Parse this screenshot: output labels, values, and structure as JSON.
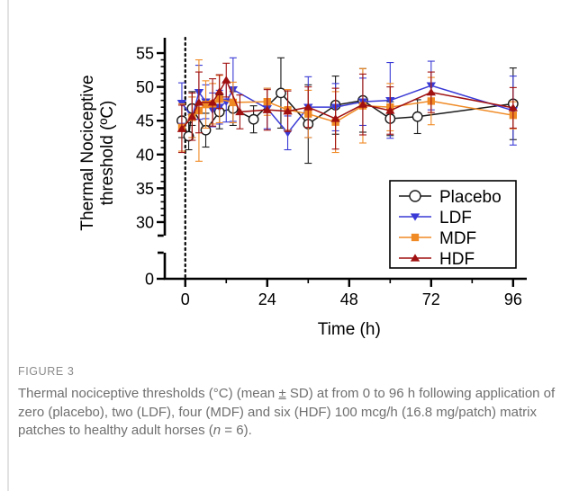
{
  "chart_data": {
    "type": "line",
    "xlabel": "Time (h)",
    "ylabel_lines": [
      "Thermal Nociceptive",
      "threshold (ºC)"
    ],
    "xlim": [
      -6,
      100
    ],
    "xticks": [
      0,
      24,
      48,
      72,
      96
    ],
    "ylim": [
      28,
      57
    ],
    "ylim_lower_segment": [
      0,
      3
    ],
    "yticks": [
      30,
      35,
      40,
      45,
      50,
      55
    ],
    "ytick_labels": [
      "30",
      "35",
      "40",
      "45",
      "50",
      "55"
    ],
    "ytick_lower": [
      0
    ],
    "ytick_lower_labels": [
      "0"
    ],
    "legend_position": "bottom-right",
    "series": [
      {
        "name": "Placebo",
        "color": "#1a1a1a",
        "marker": "circle",
        "x": [
          -1,
          1,
          2,
          6,
          10,
          14,
          20,
          28,
          36,
          44,
          52,
          60,
          68,
          96
        ],
        "y": [
          45.0,
          42.7,
          46.8,
          43.6,
          46.3,
          46.8,
          45.2,
          49.1,
          44.5,
          47.3,
          48.0,
          45.3,
          45.6,
          47.5
        ],
        "err": [
          2.5,
          2.0,
          2.5,
          2.5,
          2.5,
          2.5,
          2.0,
          5.2,
          5.8,
          4.3,
          4.7,
          2.5,
          2.5,
          5.3
        ]
      },
      {
        "name": "LDF",
        "color": "#3a3ad6",
        "marker": "triangle-down",
        "x": [
          -1,
          2,
          4,
          6,
          8,
          10,
          12,
          14,
          24,
          30,
          36,
          44,
          52,
          60,
          72,
          96
        ],
        "y": [
          47.6,
          45.5,
          49.2,
          47.8,
          46.6,
          47.0,
          47.8,
          49.6,
          46.8,
          43.2,
          47.0,
          47.0,
          47.8,
          48.0,
          50.2,
          46.5
        ],
        "err": [
          3.0,
          3.0,
          4.0,
          2.5,
          2.5,
          2.5,
          3.0,
          4.7,
          3.0,
          2.5,
          4.5,
          3.5,
          3.5,
          5.6,
          3.6,
          5.1
        ]
      },
      {
        "name": "MDF",
        "color": "#f08a24",
        "marker": "square",
        "x": [
          -1,
          2,
          4,
          6,
          8,
          10,
          14,
          24,
          30,
          36,
          44,
          52,
          60,
          72,
          96
        ],
        "y": [
          44.0,
          45.5,
          46.5,
          47.4,
          47.5,
          48.2,
          47.7,
          47.8,
          46.6,
          46.0,
          44.8,
          47.2,
          47.0,
          47.9,
          45.8
        ],
        "err": [
          3.5,
          3.0,
          7.5,
          3.5,
          3.0,
          3.5,
          3.0,
          2.0,
          3.0,
          3.5,
          4.5,
          5.5,
          3.5,
          3.5,
          2.0
        ]
      },
      {
        "name": "HDF",
        "color": "#a01010",
        "marker": "triangle-up",
        "x": [
          -1,
          2,
          4,
          8,
          10,
          12,
          16,
          24,
          30,
          36,
          44,
          52,
          60,
          72,
          96
        ],
        "y": [
          43.8,
          45.6,
          47.7,
          47.7,
          49.3,
          51.0,
          46.3,
          46.6,
          46.4,
          47.0,
          45.3,
          47.4,
          46.5,
          49.2,
          46.9
        ],
        "err": [
          3.5,
          3.5,
          4.5,
          3.5,
          2.5,
          2.5,
          2.5,
          3.0,
          3.0,
          3.0,
          4.5,
          4.5,
          3.5,
          3.0,
          3.0
        ]
      }
    ]
  },
  "figure": {
    "label": "FIGURE 3",
    "caption_pre": "Thermal nociceptive thresholds (°C) (mean ",
    "caption_pm": "±",
    "caption_mid": " SD) at from 0 to 96 h following application of zero (placebo), two (LDF), four (MDF) and six (HDF) 100 mcg/h (16.8 mg/patch) matrix patches to healthy adult horses (",
    "caption_n": "n",
    "caption_post": " = 6)."
  }
}
